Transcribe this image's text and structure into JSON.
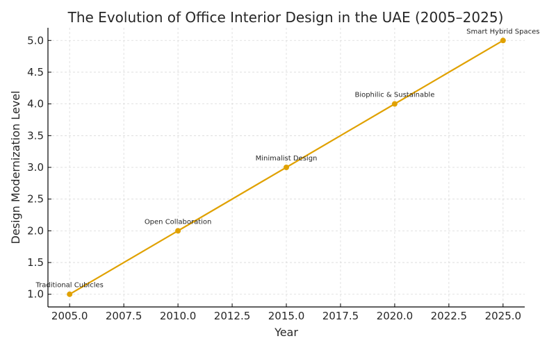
{
  "chart_data": {
    "type": "line",
    "title": "The Evolution of Office Interior Design in the UAE (2005–2025)",
    "xlabel": "Year",
    "ylabel": "Design Modernization Level",
    "x": [
      2005,
      2010,
      2015,
      2020,
      2025
    ],
    "series": [
      {
        "values": [
          1.0,
          2.0,
          3.0,
          4.0,
          5.0
        ],
        "color": "#e0a100",
        "marker": "circle"
      }
    ],
    "annotations": [
      "Traditional Cubicles",
      "Open Collaboration",
      "Minimalist Design",
      "Biophilic & Sustainable",
      "Smart Hybrid Spaces"
    ],
    "xlim": [
      2004.0,
      2026.0
    ],
    "ylim": [
      0.8,
      5.2
    ],
    "xticks": [
      2005.0,
      2007.5,
      2010.0,
      2012.5,
      2015.0,
      2017.5,
      2020.0,
      2022.5,
      2025.0
    ],
    "xtick_labels": [
      "2005.0",
      "2007.5",
      "2010.0",
      "2012.5",
      "2015.0",
      "2017.5",
      "2020.0",
      "2022.5",
      "2025.0"
    ],
    "yticks": [
      1.0,
      1.5,
      2.0,
      2.5,
      3.0,
      3.5,
      4.0,
      4.5,
      5.0
    ],
    "ytick_labels": [
      "1.0",
      "1.5",
      "2.0",
      "2.5",
      "3.0",
      "3.5",
      "4.0",
      "4.5",
      "5.0"
    ],
    "grid": true
  }
}
